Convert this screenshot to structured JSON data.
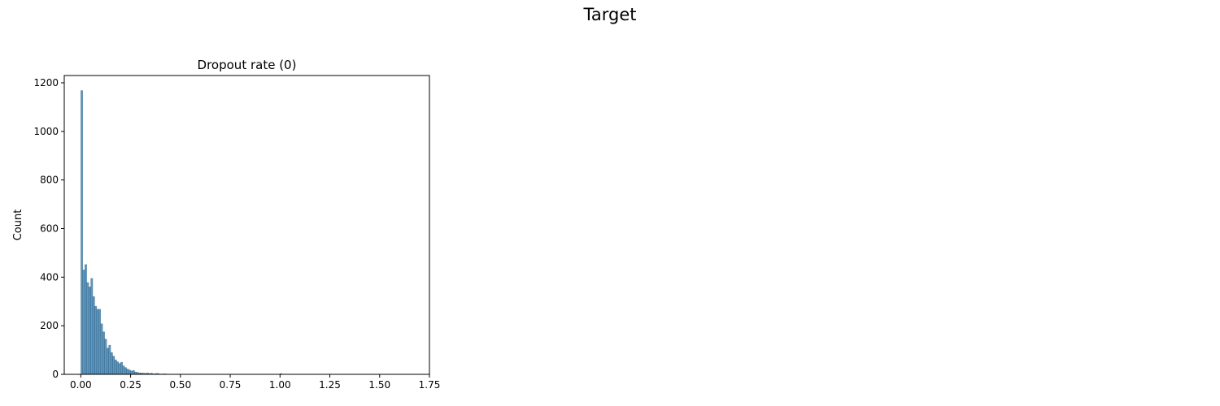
{
  "figure": {
    "suptitle": "Target"
  },
  "chart_data": {
    "type": "bar",
    "subtype": "histogram",
    "title": "Dropout rate (0)",
    "xlabel": "",
    "ylabel": "Count",
    "xlim": [
      -0.083,
      1.75
    ],
    "ylim": [
      0,
      1230
    ],
    "xticks": [
      "0.00",
      "0.25",
      "0.50",
      "0.75",
      "1.00",
      "1.25",
      "1.50",
      "1.75"
    ],
    "yticks": [
      "0",
      "200",
      "400",
      "600",
      "800",
      "1000",
      "1200"
    ],
    "grid": false,
    "bar_color": "#1f77b4",
    "bin_width": 0.01,
    "bin_start": 0.0,
    "counts": [
      1168,
      430,
      452,
      378,
      360,
      395,
      320,
      280,
      268,
      268,
      208,
      175,
      145,
      108,
      120,
      90,
      75,
      60,
      52,
      45,
      50,
      35,
      28,
      22,
      18,
      14,
      16,
      10,
      8,
      6,
      6,
      5,
      4,
      6,
      3,
      5,
      2,
      3,
      4,
      2,
      1,
      2,
      2,
      1,
      1
    ],
    "outliers": [
      {
        "x": 0.48,
        "count": 1
      },
      {
        "x": 0.55,
        "count": 1
      },
      {
        "x": 0.62,
        "count": 1
      },
      {
        "x": 0.7,
        "count": 1
      },
      {
        "x": 0.8,
        "count": 1
      },
      {
        "x": 1.0,
        "count": 3
      },
      {
        "x": 1.1,
        "count": 1
      },
      {
        "x": 1.25,
        "count": 1
      },
      {
        "x": 1.4,
        "count": 1
      },
      {
        "x": 1.65,
        "count": 1
      }
    ]
  }
}
